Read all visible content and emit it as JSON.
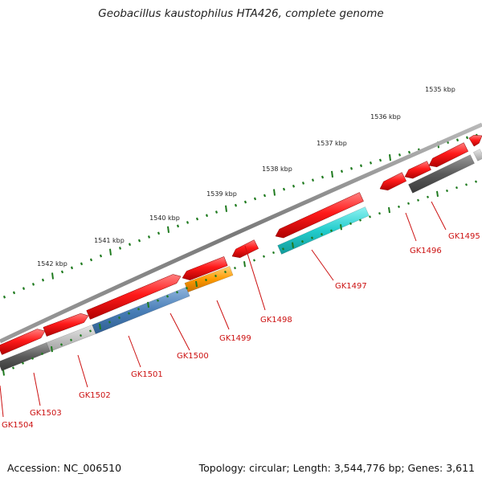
{
  "title": "Geobacillus kaustophilus HTA426, complete genome",
  "footer": {
    "accession": "Accession: NC_006510",
    "stats": "Topology: circular; Length: 3,544,776 bp; Genes: 3,611"
  },
  "colors": {
    "forward_gene": "#ee1111",
    "backbone": "#8a8a8a",
    "tick": "#1e7a1e",
    "gene_label": "#cc1111"
  },
  "scale_labels": [
    "1535 kbp",
    "1536 kbp",
    "1537 kbp",
    "1538 kbp",
    "1539 kbp",
    "1540 kbp",
    "1541 kbp",
    "1542 kbp"
  ],
  "genes": [
    {
      "name": "GK1495",
      "color": "#555555"
    },
    {
      "name": "GK1496",
      "color": "#555555"
    },
    {
      "name": "GK1497",
      "color": "#22cccc"
    },
    {
      "name": "GK1498",
      "color": "#ee1111"
    },
    {
      "name": "GK1499",
      "color": "#ff9900"
    },
    {
      "name": "GK1500",
      "color": "#4a7fb8"
    },
    {
      "name": "GK1501",
      "color": "#4a7fb8"
    },
    {
      "name": "GK1502",
      "color": "#bbbbbb"
    },
    {
      "name": "GK1503",
      "color": "#555555"
    },
    {
      "name": "GK1504",
      "color": "#555555"
    }
  ]
}
